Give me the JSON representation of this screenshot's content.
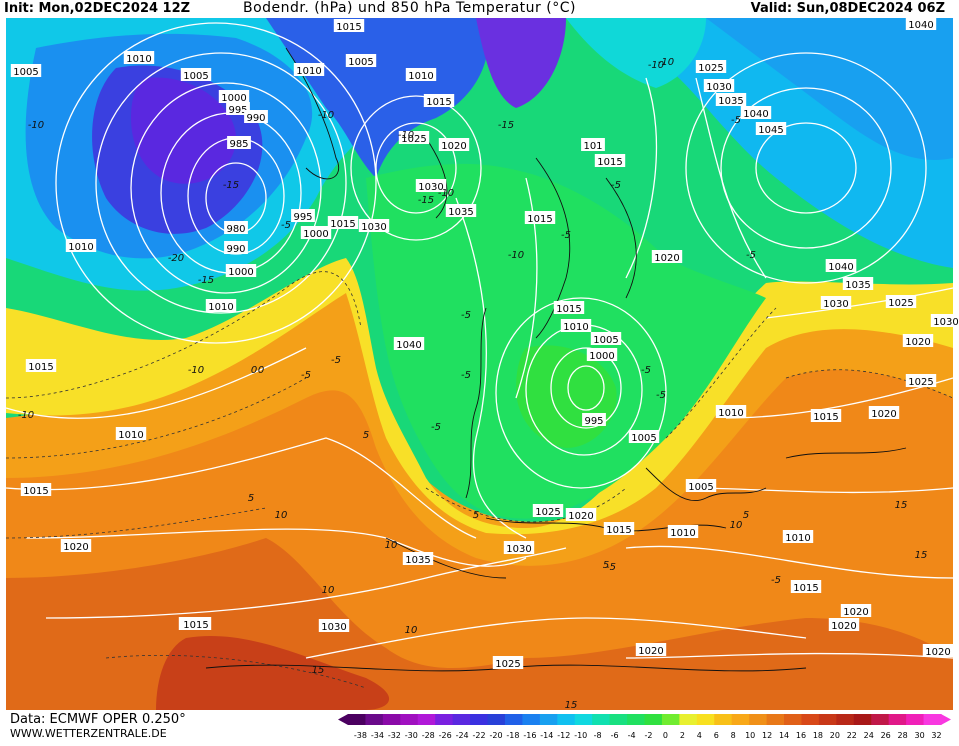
{
  "header": {
    "init": "Init: Mon,02DEC2024 12Z",
    "title": "Bodendr. (hPa) und 850 hPa Temperatur (°C)",
    "valid": "Valid: Sun,08DEC2024 06Z"
  },
  "footer": {
    "source": "Data: ECMWF OPER 0.250°",
    "website": "WWW.WETTERZENTRALE.DE"
  },
  "colorbar": {
    "ticks": [
      "-38",
      "-34",
      "-32",
      "-30",
      "-28",
      "-26",
      "-24",
      "-22",
      "-20",
      "-18",
      "-16",
      "-14",
      "-12",
      "-10",
      "-8",
      "-6",
      "-4",
      "-2",
      "0",
      "2",
      "4",
      "6",
      "8",
      "10",
      "12",
      "14",
      "16",
      "18",
      "20",
      "22",
      "24",
      "26",
      "28",
      "30",
      "32"
    ],
    "colors": [
      "#4b0060",
      "#6a0a8a",
      "#8a0aa8",
      "#a010c0",
      "#b018d8",
      "#7a20e0",
      "#5a28e0",
      "#3a30e0",
      "#2840d8",
      "#2060e8",
      "#1a80f0",
      "#18a0f0",
      "#10c0f0",
      "#10d8e0",
      "#10e0b0",
      "#18e080",
      "#20e060",
      "#30e040",
      "#70ec30",
      "#e8f030",
      "#f8e020",
      "#f8c018",
      "#f8a818",
      "#f09018",
      "#e87818",
      "#e06018",
      "#d84818",
      "#c83818",
      "#b82818",
      "#a81818",
      "#c01848",
      "#e01888",
      "#f020b8",
      "#f838e0"
    ]
  },
  "pressure_labels": [
    {
      "text": "1015"
    },
    {
      "text": "1005"
    },
    {
      "text": "1010"
    },
    {
      "text": "1010"
    },
    {
      "text": "1005"
    },
    {
      "text": "1005"
    },
    {
      "text": "1000"
    },
    {
      "text": "995"
    },
    {
      "text": "990"
    },
    {
      "text": "985"
    },
    {
      "text": "1010"
    },
    {
      "text": "1015"
    },
    {
      "text": "1025"
    },
    {
      "text": "1020"
    },
    {
      "text": "1030"
    },
    {
      "text": "980"
    },
    {
      "text": "990"
    },
    {
      "text": "1000"
    },
    {
      "text": "1010"
    },
    {
      "text": "1010"
    },
    {
      "text": "995"
    },
    {
      "text": "1000"
    },
    {
      "text": "1015"
    },
    {
      "text": "1035"
    },
    {
      "text": "1015"
    },
    {
      "text": "1015"
    },
    {
      "text": "1020"
    },
    {
      "text": "1040"
    },
    {
      "text": "1025"
    },
    {
      "text": "1030"
    },
    {
      "text": "1035"
    },
    {
      "text": "1040"
    },
    {
      "text": "1045"
    },
    {
      "text": "1040"
    },
    {
      "text": "1035"
    },
    {
      "text": "1030"
    },
    {
      "text": "1025"
    },
    {
      "text": "1030"
    },
    {
      "text": "1020"
    },
    {
      "text": "1025"
    },
    {
      "text": "1020"
    },
    {
      "text": "1015"
    },
    {
      "text": "1015"
    },
    {
      "text": "1010"
    },
    {
      "text": "1005"
    },
    {
      "text": "1000"
    },
    {
      "text": "995"
    },
    {
      "text": "1005"
    },
    {
      "text": "1010"
    },
    {
      "text": "1005"
    },
    {
      "text": "1040"
    },
    {
      "text": "1015"
    },
    {
      "text": "1010"
    },
    {
      "text": "1015"
    },
    {
      "text": "1020"
    },
    {
      "text": "1025"
    },
    {
      "text": "1020"
    },
    {
      "text": "1015"
    },
    {
      "text": "1010"
    },
    {
      "text": "1010"
    },
    {
      "text": "1035"
    },
    {
      "text": "1030"
    },
    {
      "text": "1025"
    },
    {
      "text": "1030"
    },
    {
      "text": "1025"
    },
    {
      "text": "1020"
    },
    {
      "text": "1015"
    },
    {
      "text": "1020"
    },
    {
      "text": "1020"
    },
    {
      "text": "1040"
    },
    {
      "text": "101"
    },
    {
      "text": "1030"
    },
    {
      "text": "1020"
    },
    {
      "text": "1015"
    }
  ],
  "temperature_labels": [
    "-10",
    "-10",
    "-15",
    "-20",
    "-10",
    "-15",
    "-10",
    "-5",
    "-5",
    "-5",
    "-10",
    "-5",
    "-5",
    "-5",
    "-5",
    "-5",
    "-5",
    "-10",
    "-15",
    "-10",
    "-5",
    "-5",
    "0",
    "5",
    "5",
    "10",
    "10",
    "10",
    "15",
    "15",
    "10",
    "5",
    "5",
    "10",
    "15",
    "15",
    "-5",
    "-10",
    "-5",
    "-10",
    "-15",
    "0",
    "5",
    "-5"
  ]
}
